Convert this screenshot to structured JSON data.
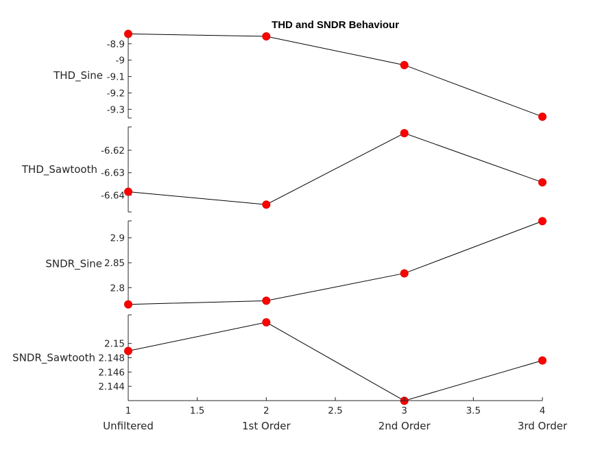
{
  "chart_data": {
    "type": "line",
    "title": "THD and SNDR Behaviour",
    "x": [
      1,
      2,
      3,
      4
    ],
    "xlim": [
      1,
      4
    ],
    "x_ticks": [
      "1",
      "1.5",
      "2",
      "2.5",
      "3",
      "3.5",
      "4"
    ],
    "x_tick_values": [
      1,
      1.5,
      2,
      2.5,
      3,
      3.5,
      4
    ],
    "categories": [
      "Unfiltered",
      "1st Order",
      "2nd Order",
      "3rd Order"
    ],
    "marker_color": "#ff0000",
    "line_color": "#000000",
    "panels": [
      {
        "ylabel": "THD_Sine",
        "ylim": [
          -9.353,
          -8.834
        ],
        "yticks": [
          "-8.9",
          "-9",
          "-9.1",
          "-9.2",
          "-9.3"
        ],
        "ytick_values": [
          -8.9,
          -9.0,
          -9.1,
          -9.2,
          -9.3
        ],
        "values": [
          -8.84,
          -8.855,
          -9.03,
          -9.345
        ]
      },
      {
        "ylabel": "THD_Sawtooth",
        "ylim": [
          -6.6475,
          -6.6096
        ],
        "yticks": [
          "-6.62",
          "-6.63",
          "-6.64"
        ],
        "ytick_values": [
          -6.62,
          -6.63,
          -6.64
        ],
        "values": [
          -6.6385,
          -6.6442,
          -6.6124,
          -6.6343
        ]
      },
      {
        "ylabel": "SNDR_Sine",
        "ylim": [
          2.762,
          2.934
        ],
        "yticks": [
          "2.9",
          "2.85",
          "2.8"
        ],
        "ytick_values": [
          2.9,
          2.85,
          2.8
        ],
        "values": [
          2.7665,
          2.7738,
          2.8288,
          2.9335
        ]
      },
      {
        "ylabel": "SNDR_Sawtooth",
        "ylim": [
          2.142,
          2.154
        ],
        "yticks": [
          "2.15",
          "2.148",
          "2.146",
          "2.144"
        ],
        "ytick_values": [
          2.15,
          2.148,
          2.146,
          2.144
        ],
        "values": [
          2.14895,
          2.15296,
          2.14198,
          2.14762
        ]
      }
    ]
  }
}
